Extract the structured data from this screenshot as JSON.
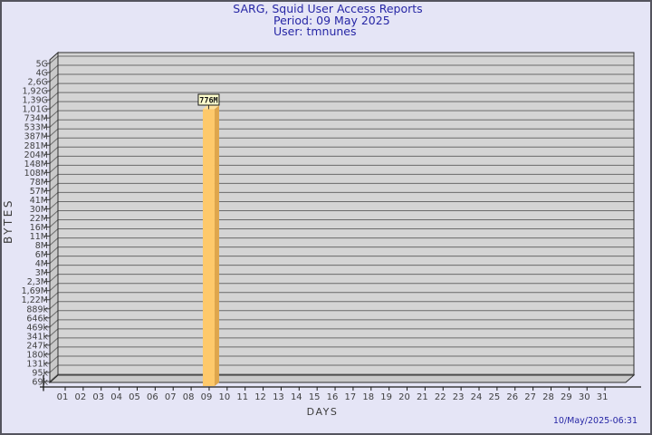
{
  "header": {
    "title": "SARG, Squid User Access Reports",
    "period": "Period: 09 May 2025",
    "user": "User: tmnunes"
  },
  "footer": {
    "generated": "10/May/2025-06:31"
  },
  "chart_data": {
    "type": "bar",
    "title": "SARG, Squid User Access Reports",
    "subtitle": "Period: 09 May 2025",
    "user_line": "User: tmnunes",
    "xlabel": "DAYS",
    "ylabel": "BYTES",
    "y_axis_scale": "log",
    "grid": true,
    "x_categories": [
      "01",
      "02",
      "03",
      "04",
      "05",
      "06",
      "07",
      "08",
      "09",
      "10",
      "11",
      "12",
      "13",
      "14",
      "15",
      "16",
      "17",
      "18",
      "19",
      "20",
      "21",
      "22",
      "23",
      "24",
      "25",
      "26",
      "27",
      "28",
      "29",
      "30",
      "31"
    ],
    "y_tick_labels": [
      "5G",
      "4G",
      "2,6G",
      "1,92G",
      "1,39G",
      "1,01G",
      "734M",
      "533M",
      "387M",
      "281M",
      "204M",
      "148M",
      "108M",
      "78M",
      "57M",
      "41M",
      "30M",
      "22M",
      "16M",
      "11M",
      "8M",
      "6M",
      "4M",
      "3M",
      "2,3M",
      "1,69M",
      "1,22M",
      "889k",
      "646k",
      "469k",
      "341k",
      "247k",
      "180k",
      "131k",
      "95k",
      "69k"
    ],
    "series": [
      {
        "name": "tmnunes",
        "points": [
          {
            "x": "09",
            "bytes": 776000000,
            "label": "776M"
          }
        ]
      }
    ],
    "colors": {
      "background": "#E5E5F6",
      "title_text": "#2626A5",
      "wall": "#D4D4D4",
      "wall_side": "#C9C9C9",
      "grid_line": "#6A6A6A",
      "frame_line": "#2E2E2E",
      "axis_line": "#1A1A1A",
      "tick_text": "#3F3F3F",
      "bar_front": "#FEC96B",
      "bar_side": "#DFA64C",
      "bar_top": "#FFE09A",
      "annotation_bg": "#FFFFCE",
      "annotation_border": "#1A1A1A",
      "annotation_text": "#111111"
    }
  }
}
